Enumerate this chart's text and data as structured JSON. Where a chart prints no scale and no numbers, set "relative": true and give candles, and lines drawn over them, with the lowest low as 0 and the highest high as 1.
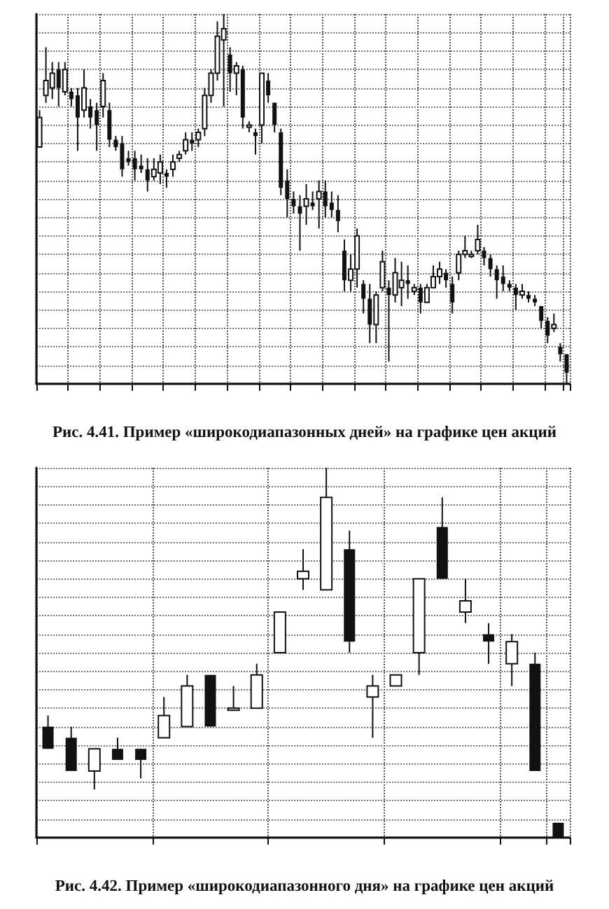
{
  "chart_data": [
    {
      "type": "candlestick",
      "title": "Рис. 4.41. Пример «широкодиапазонных дней» на графике цен акций",
      "relative": true,
      "grid": true,
      "color": "#111111",
      "categories": [
        null,
        null,
        null,
        null,
        null,
        null,
        null,
        null,
        null,
        null,
        null,
        null,
        null,
        null,
        null,
        null,
        null,
        null,
        null,
        null,
        null,
        null,
        null,
        null,
        null,
        null,
        null,
        null,
        null,
        null,
        null,
        null,
        null,
        null,
        null,
        null,
        null,
        null,
        null,
        null,
        null,
        null,
        null,
        null,
        null,
        null,
        null,
        null,
        null,
        null,
        null,
        null,
        null,
        null,
        null,
        null,
        null,
        null,
        null,
        null,
        null,
        null,
        null,
        null,
        null,
        null,
        null,
        null,
        null,
        null,
        null,
        null,
        null,
        null,
        null,
        null,
        null,
        null,
        null,
        null,
        null,
        null,
        null,
        null
      ],
      "ohlc": [
        [
          0.64,
          0.74,
          0.64,
          0.72
        ],
        [
          0.78,
          0.91,
          0.76,
          0.82
        ],
        [
          0.8,
          0.87,
          0.77,
          0.84
        ],
        [
          0.85,
          0.87,
          0.75,
          0.8
        ],
        [
          0.79,
          0.87,
          0.78,
          0.85
        ],
        [
          0.79,
          0.8,
          0.75,
          0.77
        ],
        [
          0.78,
          0.8,
          0.63,
          0.72
        ],
        [
          0.74,
          0.85,
          0.72,
          0.8
        ],
        [
          0.75,
          0.77,
          0.69,
          0.72
        ],
        [
          0.74,
          0.76,
          0.63,
          0.7
        ],
        [
          0.75,
          0.84,
          0.72,
          0.82
        ],
        [
          0.74,
          0.76,
          0.64,
          0.66
        ],
        [
          0.66,
          0.67,
          0.63,
          0.64
        ],
        [
          0.65,
          0.67,
          0.56,
          0.58
        ],
        [
          0.61,
          0.63,
          0.59,
          0.6
        ],
        [
          0.61,
          0.63,
          0.55,
          0.58
        ],
        [
          0.59,
          0.62,
          0.57,
          0.58
        ],
        [
          0.58,
          0.61,
          0.52,
          0.55
        ],
        [
          0.56,
          0.61,
          0.55,
          0.58
        ],
        [
          0.57,
          0.62,
          0.54,
          0.6
        ],
        [
          0.57,
          0.58,
          0.53,
          0.56
        ],
        [
          0.58,
          0.62,
          0.56,
          0.6
        ],
        [
          0.61,
          0.63,
          0.6,
          0.62
        ],
        [
          0.63,
          0.68,
          0.62,
          0.66
        ],
        [
          0.66,
          0.68,
          0.63,
          0.65
        ],
        [
          0.66,
          0.69,
          0.64,
          0.68
        ],
        [
          0.69,
          0.8,
          0.67,
          0.78
        ],
        [
          0.78,
          0.85,
          0.76,
          0.84
        ],
        [
          0.84,
          0.98,
          0.82,
          0.94
        ],
        [
          0.93,
          1.0,
          0.75,
          0.96
        ],
        [
          0.89,
          0.91,
          0.79,
          0.84
        ],
        [
          0.84,
          0.87,
          0.78,
          0.86
        ],
        [
          0.85,
          0.86,
          0.69,
          0.72
        ],
        [
          0.7,
          0.71,
          0.68,
          0.7
        ],
        [
          0.68,
          0.69,
          0.62,
          0.67
        ],
        [
          0.7,
          0.84,
          0.65,
          0.84
        ],
        [
          0.82,
          0.84,
          0.76,
          0.78
        ],
        [
          0.76,
          0.76,
          0.68,
          0.7
        ],
        [
          0.68,
          0.69,
          0.51,
          0.53
        ],
        [
          0.55,
          0.58,
          0.45,
          0.5
        ],
        [
          0.5,
          0.52,
          0.46,
          0.48
        ],
        [
          0.48,
          0.51,
          0.36,
          0.46
        ],
        [
          0.48,
          0.54,
          0.43,
          0.5
        ],
        [
          0.49,
          0.52,
          0.47,
          0.48
        ],
        [
          0.5,
          0.55,
          0.42,
          0.52
        ],
        [
          0.52,
          0.55,
          0.45,
          0.48
        ],
        [
          0.49,
          0.52,
          0.45,
          0.47
        ],
        [
          0.47,
          0.51,
          0.41,
          0.44
        ],
        [
          0.36,
          0.39,
          0.25,
          0.28
        ],
        [
          0.28,
          0.35,
          0.25,
          0.31
        ],
        [
          0.31,
          0.42,
          0.26,
          0.4
        ],
        [
          0.27,
          0.28,
          0.19,
          0.23
        ],
        [
          0.23,
          0.27,
          0.11,
          0.16
        ],
        [
          0.16,
          0.25,
          0.11,
          0.24
        ],
        [
          0.26,
          0.36,
          0.25,
          0.33
        ],
        [
          0.26,
          0.28,
          0.06,
          0.24
        ],
        [
          0.24,
          0.34,
          0.22,
          0.3
        ],
        [
          0.26,
          0.33,
          0.21,
          0.28
        ],
        [
          0.28,
          0.32,
          0.23,
          0.27
        ],
        [
          0.25,
          0.27,
          0.24,
          0.26
        ],
        [
          0.26,
          0.27,
          0.19,
          0.22
        ],
        [
          0.22,
          0.27,
          0.22,
          0.26
        ],
        [
          0.26,
          0.32,
          0.26,
          0.29
        ],
        [
          0.29,
          0.33,
          0.27,
          0.31
        ],
        [
          0.3,
          0.31,
          0.26,
          0.28
        ],
        [
          0.27,
          0.29,
          0.19,
          0.22
        ],
        [
          0.3,
          0.36,
          0.28,
          0.35
        ],
        [
          0.35,
          0.4,
          0.34,
          0.36
        ],
        [
          0.35,
          0.36,
          0.34,
          0.35
        ],
        [
          0.36,
          0.43,
          0.35,
          0.39
        ],
        [
          0.36,
          0.37,
          0.32,
          0.34
        ],
        [
          0.34,
          0.35,
          0.29,
          0.31
        ],
        [
          0.31,
          0.32,
          0.23,
          0.28
        ],
        [
          0.29,
          0.32,
          0.25,
          0.27
        ],
        [
          0.27,
          0.28,
          0.25,
          0.26
        ],
        [
          0.26,
          0.27,
          0.2,
          0.24
        ],
        [
          0.24,
          0.27,
          0.23,
          0.25
        ],
        [
          0.24,
          0.25,
          0.22,
          0.23
        ],
        [
          0.23,
          0.24,
          0.21,
          0.22
        ],
        [
          0.21,
          0.21,
          0.15,
          0.17
        ],
        [
          0.17,
          0.18,
          0.11,
          0.13
        ],
        [
          0.15,
          0.19,
          0.14,
          0.16
        ],
        [
          0.1,
          0.11,
          0.06,
          0.08
        ],
        [
          0.08,
          0.08,
          0.0,
          0.03
        ]
      ]
    },
    {
      "type": "candlestick",
      "title": "Рис. 4.42. Пример «широкодиапазонного дня» на графике цен акций",
      "relative": true,
      "grid": true,
      "color": "#111111",
      "categories": [
        null,
        null,
        null,
        null,
        null,
        null,
        null,
        null,
        null,
        null,
        null,
        null,
        null,
        null,
        null,
        null,
        null,
        null,
        null,
        null,
        null,
        null,
        null
      ],
      "ohlc": [
        [
          0.3,
          0.33,
          0.24,
          0.24
        ],
        [
          0.27,
          0.3,
          0.18,
          0.18
        ],
        [
          0.18,
          0.24,
          0.13,
          0.24
        ],
        [
          0.24,
          0.27,
          0.21,
          0.21
        ],
        [
          0.24,
          0.24,
          0.16,
          0.21
        ],
        [
          0.27,
          0.38,
          0.27,
          0.33
        ],
        [
          0.3,
          0.44,
          0.3,
          0.41
        ],
        [
          0.44,
          0.44,
          0.3,
          0.3
        ],
        [
          0.35,
          0.41,
          0.35,
          0.35
        ],
        [
          0.35,
          0.47,
          0.35,
          0.44
        ],
        [
          0.5,
          0.61,
          0.5,
          0.61
        ],
        [
          0.7,
          0.78,
          0.67,
          0.72
        ],
        [
          0.67,
          1.0,
          0.67,
          0.92
        ],
        [
          0.78,
          0.83,
          0.5,
          0.53
        ],
        [
          0.38,
          0.44,
          0.27,
          0.41
        ],
        [
          0.41,
          0.44,
          0.41,
          0.44
        ],
        [
          0.5,
          0.7,
          0.44,
          0.7
        ],
        [
          0.84,
          0.92,
          0.7,
          0.7
        ],
        [
          0.61,
          0.7,
          0.58,
          0.64
        ],
        [
          0.55,
          0.58,
          0.47,
          0.53
        ],
        [
          0.47,
          0.55,
          0.41,
          0.53
        ],
        [
          0.47,
          0.5,
          0.18,
          0.18
        ],
        [
          0.04,
          0.04,
          0.0,
          0.0
        ]
      ]
    }
  ]
}
